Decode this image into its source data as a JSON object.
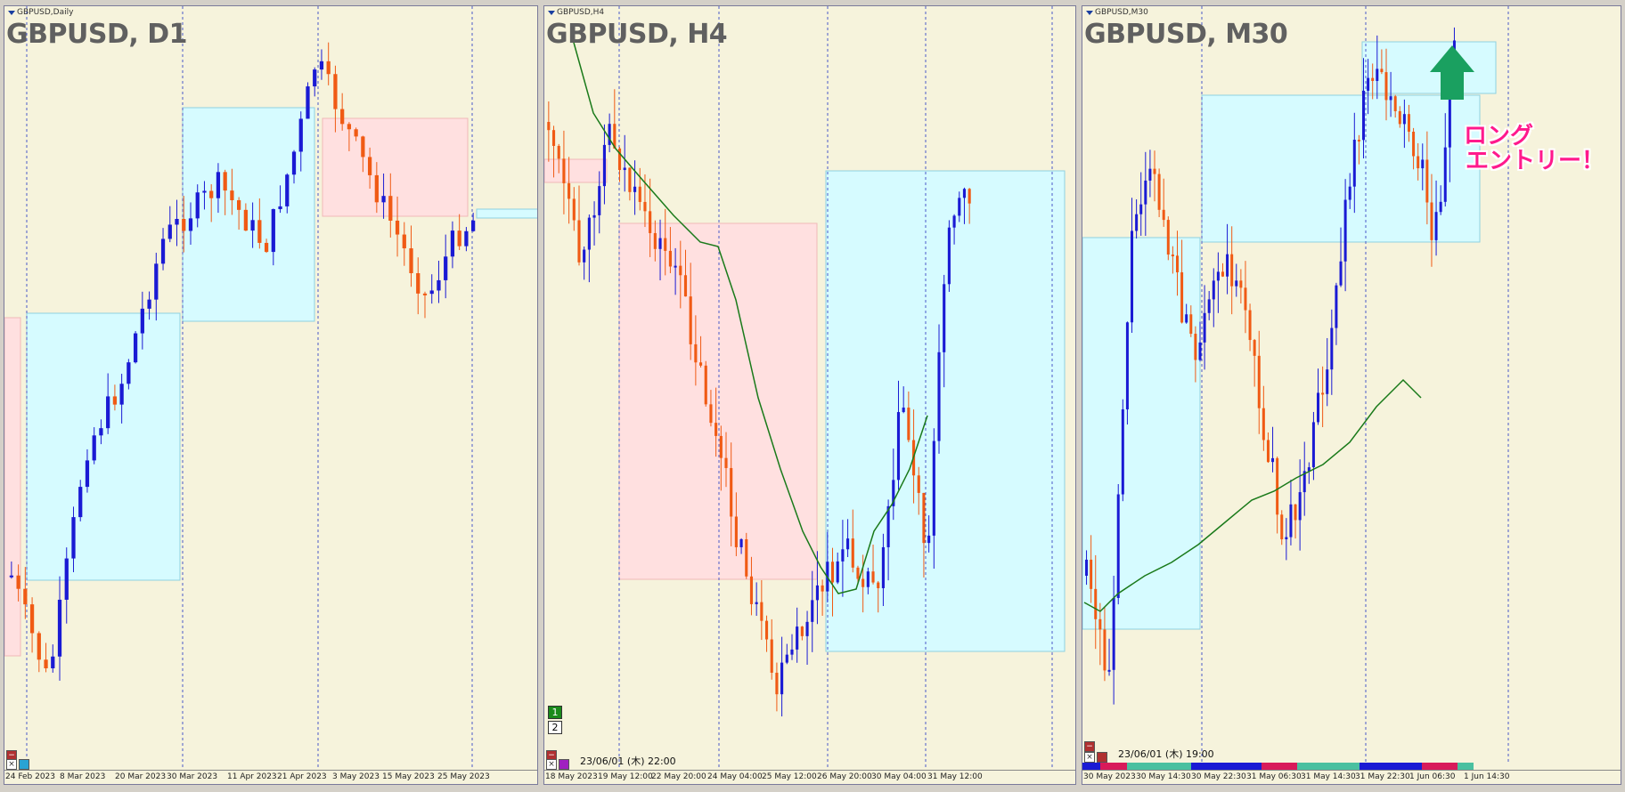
{
  "panels": [
    {
      "name": "GBPUSD,Daily",
      "title": "GBPUSD, D1",
      "time_labels": [
        "24 Feb 2023",
        "8 Mar 2023",
        "20 Mar 2023",
        "30 Mar 2023",
        "11 Apr 2023",
        "21 Apr 2023",
        "3 May 2023",
        "15 May 2023",
        "25 May 2023"
      ]
    },
    {
      "name": "GBPUSD,H4",
      "title": "GBPUSD, H4",
      "timestamp": "23/06/01 (木) 22:00",
      "num1": "1",
      "num2": "2",
      "time_labels": [
        "18 May 2023",
        "19 May 12:00",
        "22 May 20:00",
        "24 May 04:00",
        "25 May 12:00",
        "26 May 20:00",
        "30 May 04:00",
        "31 May 12:00"
      ]
    },
    {
      "name": "GBPUSD,M30",
      "title": "GBPUSD, M30",
      "timestamp": "23/06/01 (木) 19:00",
      "entry_line1": "ロング",
      "entry_line2": "エントリー！",
      "time_labels": [
        "30 May 2023",
        "30 May 14:30",
        "30 May 22:30",
        "31 May 06:30",
        "31 May 14:30",
        "31 May 22:30",
        "1 Jun 06:30",
        "1 Jun 14:30"
      ]
    }
  ],
  "colors": {
    "bull": "#1a1ad4",
    "bear": "#f05a14",
    "ma": "#1a7a1a",
    "zone_blue": "#d6fbff",
    "zone_red": "#ffe0e0",
    "arrow": "#1aa060",
    "entry": "#ff1a8c"
  },
  "buttons": {
    "close": "×",
    "minus": "−"
  }
}
